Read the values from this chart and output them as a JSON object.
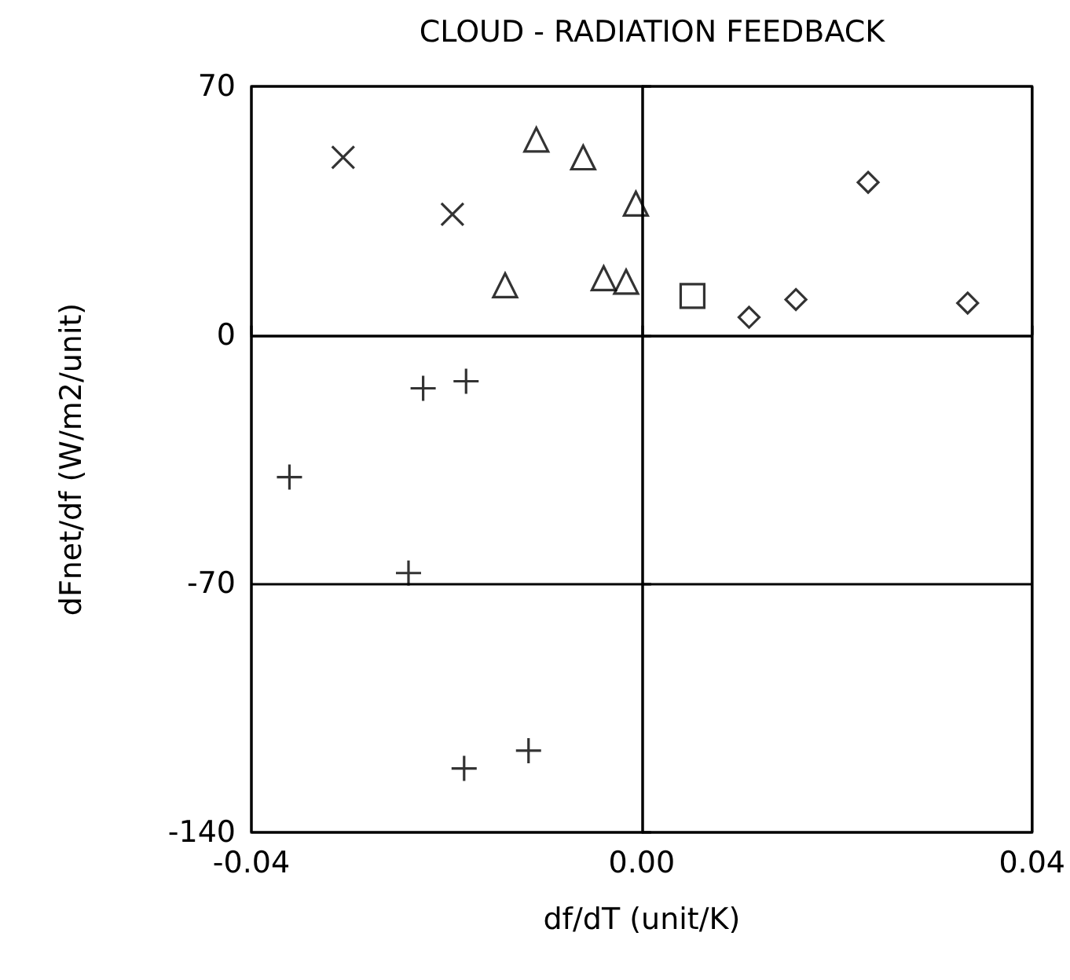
{
  "chart_data": {
    "type": "scatter",
    "title": "CLOUD - RADIATION FEEDBACK",
    "xlabel": "df/dT (unit/K)",
    "ylabel": "dFnet/df (W/m2/unit)",
    "xlim": [
      -0.04,
      0.04
    ],
    "xticks": [
      {
        "value": -0.04,
        "label": "-0.04"
      },
      {
        "value": 0,
        "label": "0.00"
      },
      0.04
    ],
    "ylim": [
      -140,
      70
    ],
    "yticks": [
      70,
      0,
      -70,
      -140
    ],
    "grid": true,
    "series": [
      {
        "color": "#000000",
        "marker": "x",
        "x": [
          -0.0306,
          -0.0194
        ],
        "values": [
          50,
          34
        ]
      },
      {
        "color": "#000000",
        "marker": "triangle",
        "x": [
          -0.0108,
          -0.006,
          -0.0006,
          -0.014,
          -0.0039,
          -0.0016
        ],
        "values": [
          55,
          50,
          37,
          14,
          16,
          15
        ]
      },
      {
        "color": "#000000",
        "marker": "square",
        "x": [
          0.0052
        ],
        "values": [
          11
        ]
      },
      {
        "color": "#000000",
        "marker": "diamond",
        "x": [
          0.011,
          0.0158,
          0.0232,
          0.0334
        ],
        "values": [
          5,
          10,
          43,
          9
        ]
      },
      {
        "color": "#000000",
        "marker": "cross",
        "x": [
          -0.0361,
          -0.0224,
          -0.018,
          -0.0239,
          -0.0182,
          -0.0116
        ],
        "values": [
          -40,
          -15,
          -13,
          -67,
          -122,
          -117
        ]
      }
    ]
  }
}
